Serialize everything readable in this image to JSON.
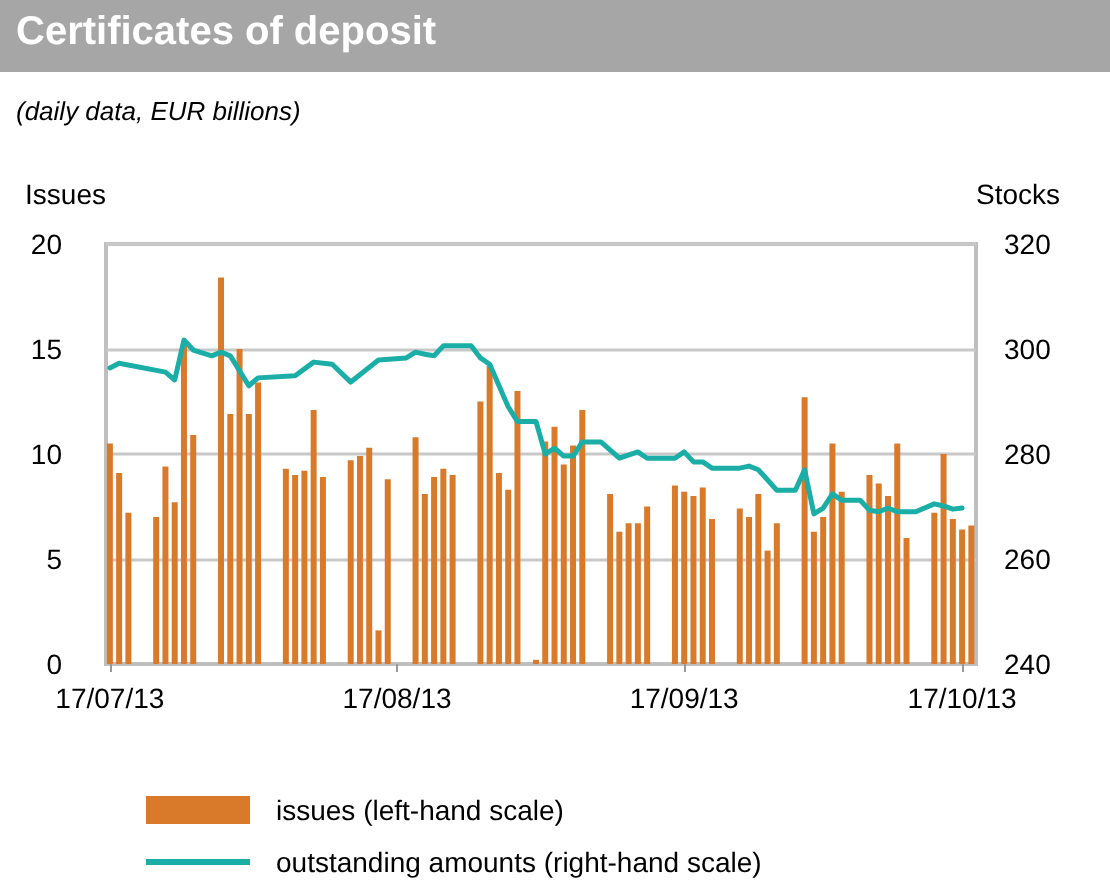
{
  "chart_data": {
    "type": "bar",
    "title": "Certificates of deposit",
    "subtitle": "(daily data, EUR billions)",
    "ylabel": "Issues",
    "y2label": "Stocks",
    "ylim": [
      0,
      20
    ],
    "yticks": [
      0,
      5,
      10,
      15,
      20
    ],
    "y2lim": [
      240,
      320
    ],
    "y2ticks": [
      240,
      260,
      280,
      300,
      320
    ],
    "xlim": [
      "2013-07-16T14:00",
      "2013-10-18T12:00"
    ],
    "xticks": [
      {
        "value": "2013-07-17",
        "label": "17/07/13"
      },
      {
        "value": "2013-08-17",
        "label": "17/08/13"
      },
      {
        "value": "2013-09-17",
        "label": "17/09/13"
      },
      {
        "value": "2013-10-17",
        "label": "17/10/13"
      }
    ],
    "grid": "y",
    "legend": "bottom",
    "series": [
      {
        "name": "issues (left-hand scale)",
        "color": "#d97a2b",
        "x": [
          "2013-07-17",
          "2013-07-18",
          "2013-07-19",
          "2013-07-22",
          "2013-07-23",
          "2013-07-24",
          "2013-07-25",
          "2013-07-26",
          "2013-07-29",
          "2013-07-30",
          "2013-07-31",
          "2013-08-01",
          "2013-08-02",
          "2013-08-05",
          "2013-08-06",
          "2013-08-07",
          "2013-08-08",
          "2013-08-09",
          "2013-08-12",
          "2013-08-13",
          "2013-08-14",
          "2013-08-15",
          "2013-08-16",
          "2013-08-19",
          "2013-08-20",
          "2013-08-21",
          "2013-08-22",
          "2013-08-23",
          "2013-08-26",
          "2013-08-27",
          "2013-08-28",
          "2013-08-29",
          "2013-08-30",
          "2013-09-01",
          "2013-09-02",
          "2013-09-03",
          "2013-09-04",
          "2013-09-05",
          "2013-09-06",
          "2013-09-09",
          "2013-09-10",
          "2013-09-11",
          "2013-09-12",
          "2013-09-13",
          "2013-09-16",
          "2013-09-17",
          "2013-09-18",
          "2013-09-19",
          "2013-09-20",
          "2013-09-23",
          "2013-09-24",
          "2013-09-25",
          "2013-09-26",
          "2013-09-27",
          "2013-09-30",
          "2013-10-01",
          "2013-10-02",
          "2013-10-03",
          "2013-10-04",
          "2013-10-07",
          "2013-10-08",
          "2013-10-09",
          "2013-10-10",
          "2013-10-11",
          "2013-10-14",
          "2013-10-15",
          "2013-10-16",
          "2013-10-17",
          "2013-10-18"
        ],
        "values": [
          10.5,
          9.1,
          7.2,
          7.0,
          9.4,
          7.7,
          15.2,
          10.9,
          18.4,
          11.9,
          15.0,
          11.9,
          13.4,
          9.3,
          9.0,
          9.2,
          12.1,
          8.9,
          9.7,
          9.9,
          10.3,
          1.6,
          8.8,
          10.8,
          8.1,
          8.9,
          9.3,
          9.0,
          12.5,
          14.2,
          9.1,
          8.3,
          13.0,
          0.2,
          10.6,
          11.3,
          9.5,
          10.4,
          12.1,
          8.1,
          6.3,
          6.7,
          6.7,
          7.5,
          8.5,
          8.2,
          8.0,
          8.4,
          6.9,
          7.4,
          7.0,
          8.1,
          5.4,
          6.7,
          12.7,
          6.3,
          7.0,
          10.5,
          8.2,
          9.0,
          8.6,
          8.0,
          10.5,
          6.0,
          7.2,
          10.0,
          6.9,
          6.4,
          6.6
        ]
      },
      {
        "name": "outstanding amounts (right-hand scale)",
        "type": "line",
        "axis": "y2",
        "color": "#1aaea6",
        "marker": "none",
        "x": [
          "2013-07-17",
          "2013-07-18",
          "2013-07-23",
          "2013-07-24",
          "2013-07-25",
          "2013-07-26",
          "2013-07-28",
          "2013-07-29",
          "2013-07-30",
          "2013-08-01",
          "2013-08-02",
          "2013-08-06",
          "2013-08-08",
          "2013-08-10",
          "2013-08-12",
          "2013-08-15",
          "2013-08-18",
          "2013-08-19",
          "2013-08-20",
          "2013-08-21",
          "2013-08-22",
          "2013-08-25",
          "2013-08-26",
          "2013-08-27",
          "2013-08-29",
          "2013-08-30",
          "2013-09-01",
          "2013-09-02",
          "2013-09-03",
          "2013-09-04",
          "2013-09-05",
          "2013-09-06",
          "2013-09-08",
          "2013-09-10",
          "2013-09-12",
          "2013-09-13",
          "2013-09-16",
          "2013-09-17",
          "2013-09-18",
          "2013-09-19",
          "2013-09-20",
          "2013-09-23",
          "2013-09-24",
          "2013-09-25",
          "2013-09-27",
          "2013-09-29",
          "2013-09-30",
          "2013-10-01",
          "2013-10-02",
          "2013-10-03",
          "2013-10-04",
          "2013-10-06",
          "2013-10-07",
          "2013-10-08",
          "2013-10-09",
          "2013-10-10",
          "2013-10-12",
          "2013-10-14",
          "2013-10-15",
          "2013-10-16",
          "2013-10-17"
        ],
        "values": [
          296.4,
          297.3,
          295.6,
          294.1,
          301.7,
          299.8,
          298.7,
          299.4,
          298.7,
          293.0,
          294.5,
          294.9,
          297.5,
          297.1,
          293.7,
          297.9,
          298.3,
          299.4,
          299.0,
          298.7,
          300.6,
          300.6,
          298.3,
          297.1,
          289.0,
          286.2,
          286.2,
          280.0,
          281.1,
          279.6,
          279.6,
          282.3,
          282.3,
          279.2,
          280.4,
          279.2,
          279.2,
          280.4,
          278.5,
          278.5,
          277.3,
          277.3,
          277.7,
          277.0,
          273.1,
          273.1,
          277.0,
          268.6,
          269.7,
          272.4,
          271.2,
          271.2,
          269.3,
          269.0,
          269.7,
          269.0,
          269.0,
          270.5,
          270.1,
          269.5,
          269.7
        ]
      }
    ]
  }
}
